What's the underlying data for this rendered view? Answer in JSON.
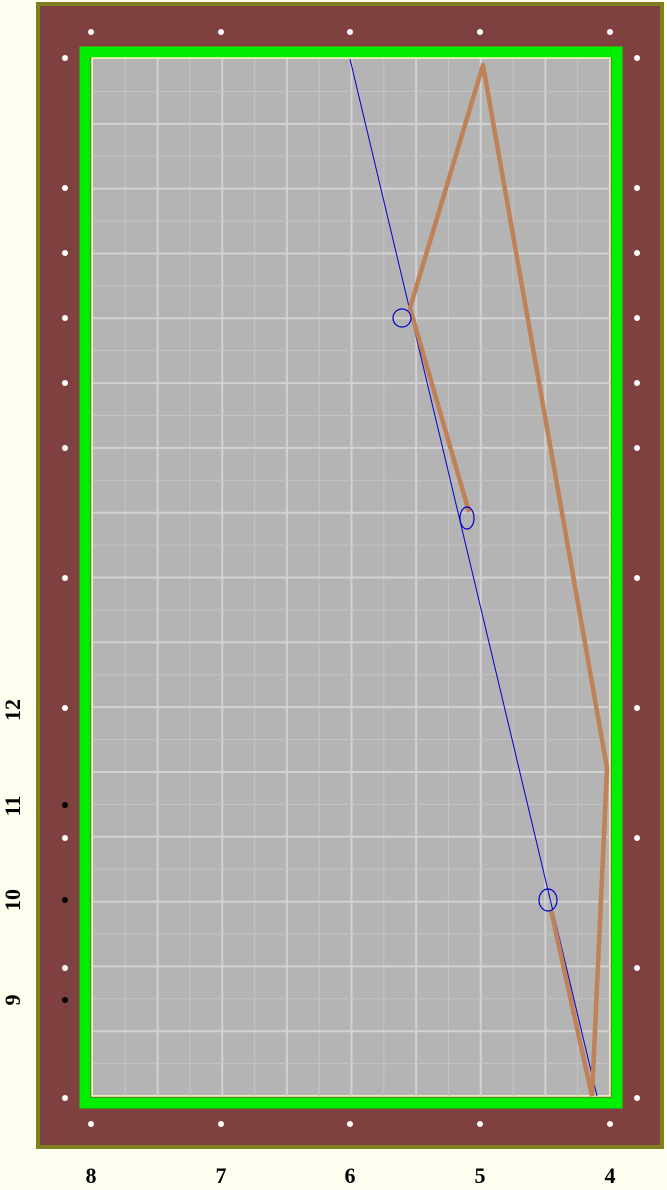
{
  "diagram": {
    "bottom_labels": [
      "8",
      "7",
      "6",
      "5",
      "4"
    ],
    "side_labels": [
      "12",
      "11",
      "10",
      "9"
    ]
  }
}
